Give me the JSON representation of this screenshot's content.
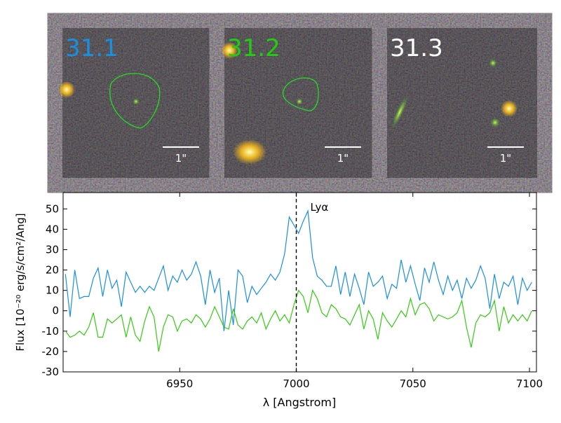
{
  "panels": [
    {
      "label": "31.1",
      "color": "#1a8fe0",
      "scale": "1\""
    },
    {
      "label": "31.2",
      "color": "#22cc11",
      "scale": "1\""
    },
    {
      "label": "31.3",
      "color": "#ffffff",
      "scale": "1\""
    }
  ],
  "chart_data": {
    "type": "line",
    "xlabel": "λ [Angstrom]",
    "ylabel": "Flux [10⁻²⁰ erg/s/cm²/Ang]",
    "xlim": [
      6900,
      7103
    ],
    "ylim": [
      -30,
      58
    ],
    "xticks": [
      6950,
      7000,
      7050,
      7100
    ],
    "yticks": [
      -30,
      -20,
      -10,
      0,
      10,
      20,
      30,
      40,
      50
    ],
    "annotation": {
      "text": "Lyα",
      "x": 7000
    },
    "x": [
      6901,
      6903,
      6905,
      6907,
      6909,
      6911,
      6913,
      6915,
      6917,
      6919,
      6921,
      6923,
      6925,
      6927,
      6929,
      6931,
      6933,
      6935,
      6937,
      6939,
      6941,
      6943,
      6945,
      6947,
      6949,
      6951,
      6953,
      6955,
      6957,
      6959,
      6961,
      6963,
      6965,
      6967,
      6969,
      6971,
      6973,
      6975,
      6977,
      6979,
      6981,
      6983,
      6985,
      6987,
      6989,
      6991,
      6993,
      6995,
      6997,
      6999,
      7001,
      7003,
      7005,
      7007,
      7009,
      7011,
      7013,
      7015,
      7017,
      7019,
      7021,
      7023,
      7025,
      7027,
      7029,
      7031,
      7033,
      7035,
      7037,
      7039,
      7041,
      7043,
      7045,
      7047,
      7049,
      7051,
      7053,
      7055,
      7057,
      7059,
      7061,
      7063,
      7065,
      7067,
      7069,
      7071,
      7073,
      7075,
      7077,
      7079,
      7081,
      7083,
      7085,
      7087,
      7089,
      7091,
      7093,
      7095,
      7097,
      7099,
      7101
    ],
    "series": [
      {
        "color": "#1a8fe0",
        "values": [
          18,
          -3,
          20,
          6,
          7,
          7,
          16,
          21,
          7,
          20,
          11,
          15,
          2,
          19,
          14,
          9,
          12,
          9,
          12,
          10,
          16,
          22,
          10,
          17,
          14,
          20,
          15,
          18,
          24,
          17,
          3,
          20,
          9,
          16,
          -10,
          10,
          -7,
          20,
          17,
          4,
          12,
          8,
          11,
          14,
          18,
          15,
          19,
          28,
          46,
          42,
          38,
          44,
          49,
          26,
          17,
          15,
          12,
          12,
          22,
          8,
          19,
          7,
          18,
          11,
          3,
          19,
          12,
          14,
          17,
          6,
          13,
          11,
          25,
          14,
          22,
          13,
          5,
          21,
          14,
          24,
          15,
          8,
          17,
          10,
          15,
          6,
          16,
          11,
          15,
          22,
          16,
          1,
          18,
          6,
          14,
          12,
          17,
          3,
          16,
          10,
          14
        ]
      },
      {
        "color": "#33cc11",
        "values": [
          -10,
          -13,
          -12,
          -10,
          -12,
          -8,
          -1,
          -13,
          -13,
          -4,
          -6,
          -4,
          -2,
          -13,
          -3,
          -12,
          -15,
          -5,
          2,
          -3,
          -20,
          -8,
          -2,
          -3,
          -10,
          -5,
          -4,
          -6,
          -2,
          -4,
          -8,
          -4,
          2,
          -3,
          -8,
          -9,
          1,
          -7,
          -9,
          -5,
          -3,
          -6,
          -1,
          -9,
          -4,
          0,
          -5,
          -2,
          -6,
          3,
          10,
          7,
          -1,
          10,
          6,
          -1,
          -3,
          3,
          1,
          -3,
          -4,
          -7,
          -2,
          3,
          -9,
          0,
          -4,
          -14,
          -1,
          -5,
          -8,
          -4,
          0,
          -3,
          6,
          -2,
          3,
          4,
          1,
          -5,
          -2,
          -3,
          -4,
          -3,
          -1,
          5,
          -8,
          -18,
          -6,
          -2,
          -3,
          -1,
          5,
          -10,
          2,
          -6,
          -2,
          -5,
          -2,
          -5,
          0
        ]
      }
    ]
  }
}
